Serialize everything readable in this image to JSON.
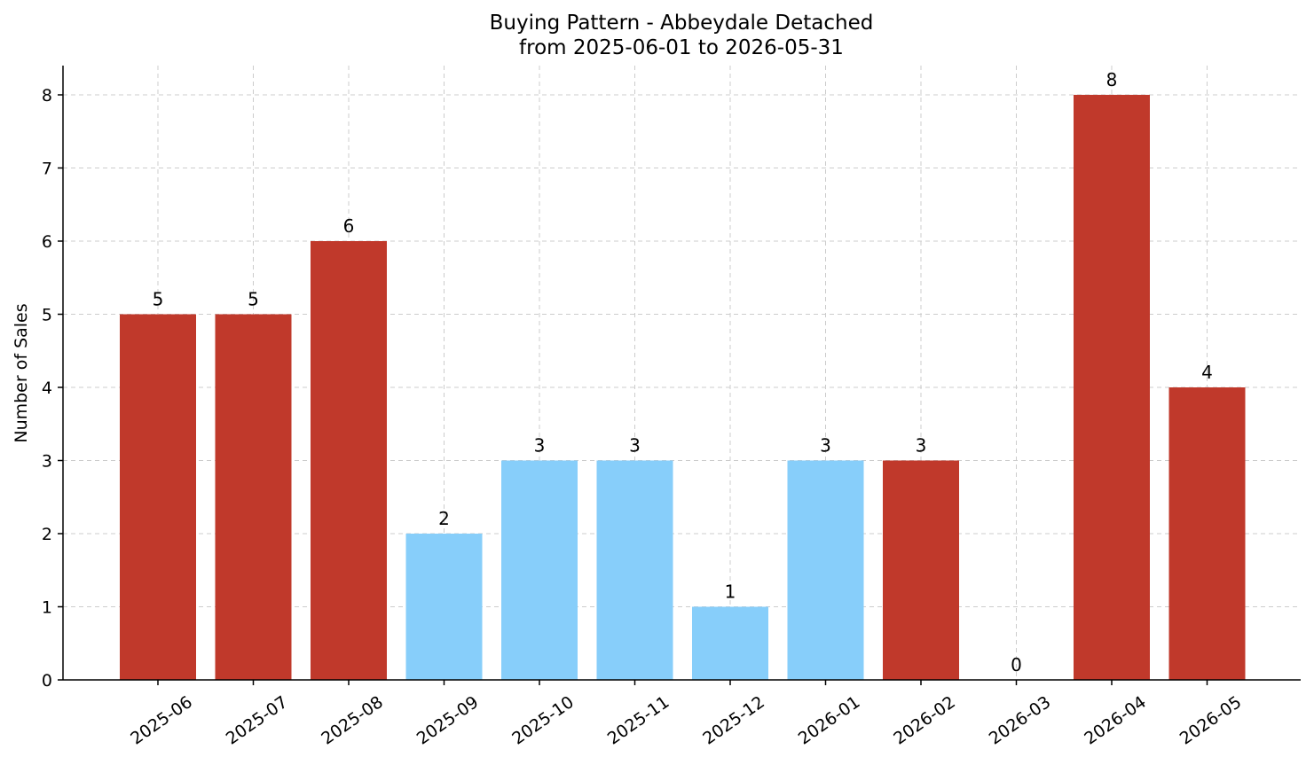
{
  "chart_data": {
    "type": "bar",
    "title": "Buying Pattern - Abbeydale Detached",
    "subtitle": "from 2025-06-01 to 2026-05-31",
    "xlabel": "",
    "ylabel": "Number of Sales",
    "categories": [
      "2025-06",
      "2025-07",
      "2025-08",
      "2025-09",
      "2025-10",
      "2025-11",
      "2025-12",
      "2026-01",
      "2026-02",
      "2026-03",
      "2026-04",
      "2026-05"
    ],
    "values": [
      5,
      5,
      6,
      2,
      3,
      3,
      1,
      3,
      3,
      0,
      8,
      4
    ],
    "bar_colors": [
      "#c0392b",
      "#c0392b",
      "#c0392b",
      "#87cefa",
      "#87cefa",
      "#87cefa",
      "#87cefa",
      "#87cefa",
      "#c0392b",
      "#c0392b",
      "#c0392b",
      "#c0392b"
    ],
    "yticks": [
      0,
      1,
      2,
      3,
      4,
      5,
      6,
      7,
      8
    ],
    "ylim": [
      0,
      8.4
    ],
    "grid": true,
    "data_labels": true
  }
}
